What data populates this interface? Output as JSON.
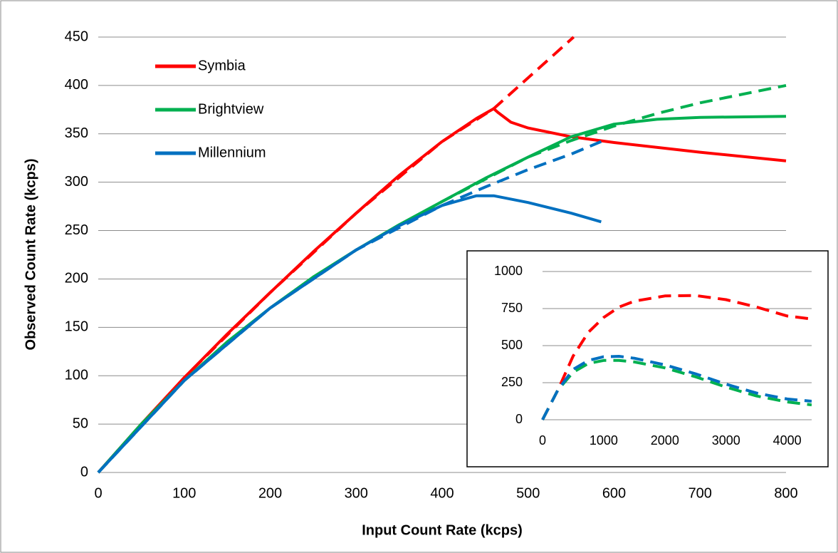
{
  "chart_data": [
    {
      "type": "line",
      "xlabel": "Input Count Rate (kcps)",
      "ylabel": "Observed Count Rate (kcps)",
      "xlim": [
        0,
        800
      ],
      "ylim": [
        0,
        450
      ],
      "xticks": [
        0,
        100,
        200,
        300,
        400,
        500,
        600,
        700,
        800
      ],
      "yticks": [
        0,
        50,
        100,
        150,
        200,
        250,
        300,
        350,
        400,
        450
      ],
      "grid": true,
      "legend": "upper left",
      "series": [
        {
          "name": "Symbia",
          "color": "#ff0000",
          "x": [
            0,
            50,
            100,
            150,
            200,
            250,
            300,
            350,
            400,
            440,
            460,
            465,
            480,
            500,
            550,
            600,
            700,
            800
          ],
          "values": [
            0,
            50,
            98,
            143,
            186,
            228,
            268,
            307,
            342,
            366,
            376,
            372,
            362,
            356,
            347,
            341,
            331,
            322
          ],
          "fit_x": [
            0,
            100,
            200,
            300,
            400,
            460,
            553
          ],
          "fit_values": [
            0,
            98,
            186,
            268,
            342,
            376,
            450
          ]
        },
        {
          "name": "Brightview",
          "color": "#00b050",
          "x": [
            0,
            50,
            100,
            150,
            200,
            250,
            300,
            350,
            400,
            450,
            500,
            550,
            600,
            650,
            700,
            800
          ],
          "values": [
            0,
            50,
            95,
            135,
            170,
            202,
            230,
            256,
            280,
            304,
            326,
            347,
            360,
            365,
            367,
            368
          ],
          "fit_x": [
            0,
            100,
            200,
            300,
            400,
            500,
            550,
            600,
            650,
            700,
            800
          ],
          "fit_values": [
            0,
            95,
            170,
            230,
            280,
            326,
            343,
            358,
            371,
            382,
            400
          ]
        },
        {
          "name": "Millennium",
          "color": "#0070c0",
          "x": [
            0,
            100,
            200,
            300,
            350,
            400,
            440,
            460,
            500,
            550,
            585
          ],
          "values": [
            0,
            95,
            170,
            230,
            255,
            276,
            286,
            286,
            279,
            268,
            259
          ],
          "fit_x": [
            0,
            100,
            200,
            300,
            400,
            450,
            500,
            550,
            585
          ],
          "fit_values": [
            0,
            95,
            170,
            230,
            276,
            295,
            313,
            329,
            342
          ]
        }
      ]
    },
    {
      "type": "line",
      "xlim": [
        0,
        4400
      ],
      "ylim": [
        0,
        1000
      ],
      "xticks": [
        0,
        1000,
        2000,
        3000,
        4000
      ],
      "yticks": [
        0,
        250,
        500,
        750,
        1000
      ],
      "grid": true,
      "series": [
        {
          "color": "#ff0000",
          "x": [
            0,
            250,
            500,
            750,
            1000,
            1250,
            1500,
            2000,
            2500,
            3000,
            3500,
            4000,
            4400
          ],
          "values": [
            0,
            200,
            430,
            590,
            690,
            760,
            800,
            835,
            838,
            810,
            760,
            700,
            680
          ]
        },
        {
          "color": "#00b050",
          "x": [
            0,
            250,
            500,
            750,
            1000,
            1250,
            1500,
            2000,
            2500,
            3000,
            3500,
            4000,
            4400
          ],
          "values": [
            0,
            200,
            320,
            380,
            400,
            400,
            390,
            350,
            290,
            220,
            160,
            120,
            100
          ]
        },
        {
          "color": "#0070c0",
          "x": [
            0,
            250,
            500,
            750,
            1000,
            1250,
            1500,
            2000,
            2500,
            3000,
            3500,
            4000,
            4400
          ],
          "values": [
            0,
            200,
            340,
            400,
            425,
            428,
            415,
            370,
            310,
            240,
            180,
            140,
            125
          ]
        }
      ]
    }
  ]
}
